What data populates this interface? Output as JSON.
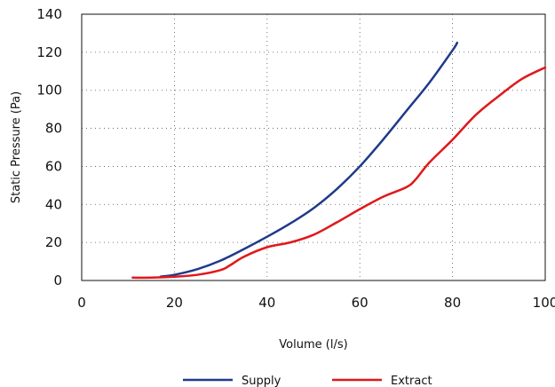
{
  "chart_data": {
    "type": "line",
    "xlabel": "Volume (l/s)",
    "ylabel": "Static Pressure (Pa)",
    "xlim": [
      0,
      100
    ],
    "ylim": [
      0,
      140
    ],
    "xticks": [
      0,
      20,
      40,
      60,
      80,
      100
    ],
    "yticks": [
      0,
      20,
      40,
      60,
      80,
      100,
      120,
      140
    ],
    "xtick_labels": [
      "0",
      "20",
      "40",
      "60",
      "80",
      "100"
    ],
    "ytick_labels": [
      "0",
      "20",
      "40",
      "60",
      "80",
      "100",
      "120",
      "140"
    ],
    "grid": true,
    "legend_position": "bottom",
    "series": [
      {
        "name": "Supply",
        "color": "#1f3a8a",
        "x": [
          17,
          20,
          25,
          30,
          35,
          40,
          45,
          50,
          55,
          60,
          65,
          70,
          75,
          80,
          81
        ],
        "y": [
          2,
          3,
          6,
          10.5,
          16.5,
          23,
          30,
          38,
          48,
          60,
          74,
          89,
          104,
          121,
          125
        ]
      },
      {
        "name": "Extract",
        "color": "#e0181b",
        "x": [
          11,
          15,
          20,
          25,
          30,
          32,
          35,
          40,
          45,
          50,
          55,
          60,
          65,
          70,
          72,
          75,
          80,
          85,
          90,
          95,
          100
        ],
        "y": [
          1.5,
          1.5,
          2,
          3,
          5.5,
          8,
          12.5,
          17.5,
          20,
          24,
          30.5,
          37.5,
          44,
          49,
          53,
          62,
          74,
          87,
          97,
          106,
          112
        ]
      }
    ]
  }
}
